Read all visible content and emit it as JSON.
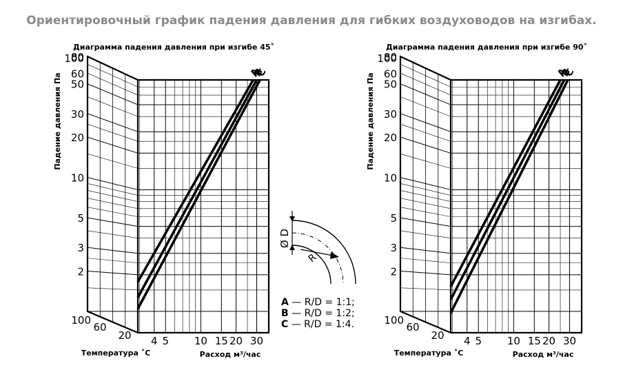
{
  "page_title": "Ориентировочный график падения давления для гибких воздуховодов на изгибах.",
  "colors": {
    "ink": "#000000",
    "title_gray": "#8a8a8a"
  },
  "legend": {
    "a": {
      "letter": "A",
      "text": " — R/D = 1:1;"
    },
    "b": {
      "letter": "B",
      "text": " — R/D = 1:2;"
    },
    "c": {
      "letter": "C",
      "text": " — R/D = 1:4."
    }
  },
  "diagram": {
    "d_label": "D",
    "diameter_symbol": "Ø",
    "r_label": "R"
  },
  "chart_data": [
    {
      "type": "line",
      "title": "Диаграмма падения давления при изгибе 45˚",
      "ylabel": "Падение давления Па",
      "xlabel": "Расход м³/час",
      "temp_label": "Температура ˚С",
      "y_scale": "log",
      "ylim": [
        1,
        100
      ],
      "x_scale": "log",
      "y_ticks": [
        "100",
        "80",
        "60",
        "50",
        "30",
        "20",
        "10",
        "5",
        "3",
        "2"
      ],
      "x_ticks": [
        "4",
        "5",
        "10",
        "15",
        "20",
        "30"
      ],
      "temp_ticks": [
        "100",
        "60",
        "20"
      ],
      "grid": true,
      "series": [
        {
          "name": "A",
          "x": [
            2.9,
            28
          ],
          "y": [
            1.75,
            80
          ]
        },
        {
          "name": "B",
          "x": [
            2.9,
            30
          ],
          "y": [
            1.3,
            80
          ]
        },
        {
          "name": "C",
          "x": [
            2.9,
            32
          ],
          "y": [
            1.05,
            80
          ]
        }
      ]
    },
    {
      "type": "line",
      "title": "Диаграмма падения давления при изгибе 90˚",
      "ylabel": "Падение давления Па",
      "xlabel": "Расход м³/час",
      "temp_label": "Температура ˚С",
      "y_scale": "log",
      "ylim": [
        1,
        100
      ],
      "x_scale": "log",
      "y_ticks": [
        "100",
        "80",
        "60",
        "50",
        "30",
        "20",
        "10",
        "5",
        "3",
        "2"
      ],
      "x_ticks": [
        "4",
        "5",
        "10",
        "15",
        "20",
        "30"
      ],
      "temp_ticks": [
        "100",
        "60",
        "20"
      ],
      "grid": true,
      "series": [
        {
          "name": "A",
          "x": [
            2.9,
            25
          ],
          "y": [
            1.6,
            80
          ]
        },
        {
          "name": "B",
          "x": [
            2.9,
            27
          ],
          "y": [
            1.25,
            80
          ]
        },
        {
          "name": "C",
          "x": [
            2.9,
            29
          ],
          "y": [
            0.97,
            80
          ]
        }
      ]
    }
  ]
}
